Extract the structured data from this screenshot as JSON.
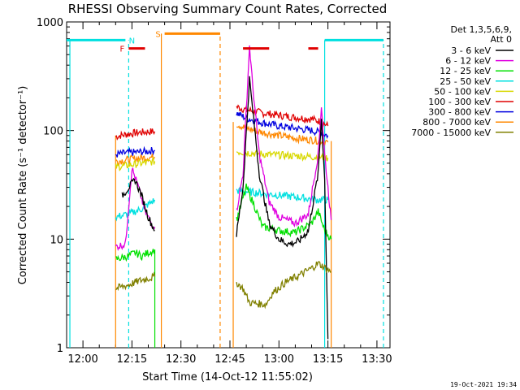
{
  "chart_data": {
    "type": "line",
    "title": "RHESSI Observing Summary Count Rates, Corrected",
    "xlabel": "Start Time (14-Oct-12 11:55:02)",
    "ylabel": "Corrected Count Rate (s⁻¹ detector⁻¹)",
    "y_scale": "log",
    "ylim": [
      1,
      1000
    ],
    "xlim_minutes_label_range": [
      "11:55",
      "13:34"
    ],
    "y_ticks": [
      {
        "value": 1,
        "label": "1"
      },
      {
        "value": 10,
        "label": "10"
      },
      {
        "value": 100,
        "label": "100"
      },
      {
        "value": 1000,
        "label": "1000"
      }
    ],
    "x_ticks": [
      {
        "value": "12:00",
        "label": "12:00"
      },
      {
        "value": "12:15",
        "label": "12:15"
      },
      {
        "value": "12:30",
        "label": "12:30"
      },
      {
        "value": "12:45",
        "label": "12:45"
      },
      {
        "value": "13:00",
        "label": "13:00"
      },
      {
        "value": "13:15",
        "label": "13:15"
      },
      {
        "value": "13:30",
        "label": "13:30"
      }
    ],
    "legend": {
      "placement": "top-right",
      "header1": "Det 1,3,5,6,9,",
      "header2": "Att 0",
      "entries": [
        {
          "label": "3 - 6 keV",
          "color": "#000000"
        },
        {
          "label": "6 - 12 keV",
          "color": "#e000e0"
        },
        {
          "label": "12 - 25 keV",
          "color": "#00e000"
        },
        {
          "label": "25 - 50 keV",
          "color": "#00e0e0"
        },
        {
          "label": "50 - 100 keV",
          "color": "#d8d800"
        },
        {
          "label": "100 - 300 keV",
          "color": "#e00000"
        },
        {
          "label": "300 - 800 keV",
          "color": "#0000e0"
        },
        {
          "label": "800 - 7000 keV",
          "color": "#ff8800"
        },
        {
          "label": "7000 - 15000 keV",
          "color": "#808000"
        }
      ]
    },
    "series": [
      {
        "name": "100 - 300 keV",
        "color": "#e00000",
        "segments": [
          [
            [
              "12:10",
              88
            ],
            [
              "12:13",
              92
            ],
            [
              "12:16",
              95
            ],
            [
              "12:19",
              97
            ],
            [
              "12:22",
              98
            ]
          ],
          [
            [
              "12:47",
              165
            ],
            [
              "12:50",
              155
            ],
            [
              "12:55",
              145
            ],
            [
              "13:00",
              138
            ],
            [
              "13:05",
              132
            ],
            [
              "13:10",
              128
            ],
            [
              "13:13",
              120
            ],
            [
              "13:15",
              110
            ]
          ]
        ]
      },
      {
        "name": "300 - 800 keV",
        "color": "#0000e0",
        "segments": [
          [
            [
              "12:10",
              60
            ],
            [
              "12:13",
              62
            ],
            [
              "12:16",
              63
            ],
            [
              "12:19",
              64
            ],
            [
              "12:22",
              66
            ]
          ],
          [
            [
              "12:47",
              145
            ],
            [
              "12:50",
              130
            ],
            [
              "12:55",
              118
            ],
            [
              "13:00",
              110
            ],
            [
              "13:05",
              105
            ],
            [
              "13:10",
              100
            ],
            [
              "13:13",
              95
            ],
            [
              "13:15",
              90
            ]
          ]
        ]
      },
      {
        "name": "800 - 7000 keV",
        "color": "#ff8800",
        "segments": [
          [
            [
              "12:10",
              52
            ],
            [
              "12:14",
              54
            ],
            [
              "12:18",
              56
            ],
            [
              "12:22",
              57
            ]
          ],
          [
            [
              "12:47",
              115
            ],
            [
              "12:50",
              105
            ],
            [
              "12:55",
              96
            ],
            [
              "13:00",
              90
            ],
            [
              "13:05",
              85
            ],
            [
              "13:10",
              82
            ],
            [
              "13:13",
              80
            ],
            [
              "13:15",
              78
            ]
          ]
        ]
      },
      {
        "name": "50 - 100 keV",
        "color": "#d8d800",
        "segments": [
          [
            [
              "12:10",
              46
            ],
            [
              "12:14",
              48
            ],
            [
              "12:18",
              50
            ],
            [
              "12:22",
              52
            ]
          ],
          [
            [
              "12:47",
              64
            ],
            [
              "12:52",
              62
            ],
            [
              "12:57",
              60
            ],
            [
              "13:02",
              59
            ],
            [
              "13:07",
              58
            ],
            [
              "13:12",
              57
            ],
            [
              "13:15",
              56
            ]
          ]
        ]
      },
      {
        "name": "25 - 50 keV",
        "color": "#00e0e0",
        "segments": [
          [
            [
              "12:10",
              16
            ],
            [
              "12:14",
              17
            ],
            [
              "12:18",
              19
            ],
            [
              "12:22",
              23
            ]
          ],
          [
            [
              "12:47",
              28
            ],
            [
              "12:52",
              27
            ],
            [
              "12:57",
              26
            ],
            [
              "13:02",
              25
            ],
            [
              "13:07",
              24
            ],
            [
              "13:12",
              23
            ],
            [
              "13:15",
              23
            ]
          ]
        ]
      },
      {
        "name": "12 - 25 keV",
        "color": "#00e000",
        "segments": [
          [
            [
              "12:10",
              6.5
            ],
            [
              "12:14",
              7
            ],
            [
              "12:16",
              7.5
            ],
            [
              "12:18",
              7
            ],
            [
              "12:20",
              7.5
            ],
            [
              "12:22",
              8
            ]
          ],
          [
            [
              "12:47",
              15
            ],
            [
              "12:50",
              30
            ],
            [
              "12:52",
              22
            ],
            [
              "12:55",
              13
            ],
            [
              "13:00",
              12
            ],
            [
              "13:05",
              11.5
            ],
            [
              "13:10",
              14
            ],
            [
              "13:12",
              18
            ],
            [
              "13:14",
              12
            ],
            [
              "13:16",
              10
            ]
          ]
        ]
      },
      {
        "name": "6 - 12 keV",
        "color": "#e000e0",
        "segments": [
          [
            [
              "12:10",
              8.5
            ],
            [
              "12:13",
              9
            ],
            [
              "12:15",
              45
            ],
            [
              "12:17",
              30
            ],
            [
              "12:19",
              18
            ],
            [
              "12:21",
              14
            ],
            [
              "12:22",
              13
            ]
          ],
          [
            [
              "12:47",
              18
            ],
            [
              "12:49",
              40
            ],
            [
              "12:51",
              600
            ],
            [
              "12:52",
              250
            ],
            [
              "12:54",
              60
            ],
            [
              "12:57",
              22
            ],
            [
              "13:00",
              16
            ],
            [
              "13:05",
              14
            ],
            [
              "13:09",
              17
            ],
            [
              "13:12",
              60
            ],
            [
              "13:13",
              170
            ],
            [
              "13:14",
              60
            ],
            [
              "13:16",
              15
            ]
          ]
        ]
      },
      {
        "name": "3 - 6 keV",
        "color": "#000000",
        "segments": [
          [
            [
              "12:12",
              25
            ],
            [
              "12:14",
              30
            ],
            [
              "12:16",
              35
            ],
            [
              "12:18",
              25
            ],
            [
              "12:20",
              16
            ],
            [
              "12:22",
              12
            ]
          ],
          [
            [
              "12:47",
              11
            ],
            [
              "12:49",
              30
            ],
            [
              "12:51",
              300
            ],
            [
              "12:52",
              150
            ],
            [
              "12:54",
              40
            ],
            [
              "12:57",
              14
            ],
            [
              "13:00",
              10
            ],
            [
              "13:03",
              9
            ],
            [
              "13:06",
              9.5
            ],
            [
              "13:09",
              12
            ],
            [
              "13:12",
              40
            ],
            [
              "13:13",
              130
            ],
            [
              "13:14",
              35
            ],
            [
              "13:15",
              1.2
            ]
          ]
        ]
      },
      {
        "name": "7000 - 15000 keV",
        "color": "#808000",
        "segments": [
          [
            [
              "12:10",
              3.5
            ],
            [
              "12:14",
              3.8
            ],
            [
              "12:18",
              4.2
            ],
            [
              "12:22",
              4.5
            ]
          ],
          [
            [
              "12:47",
              4
            ],
            [
              "12:49",
              3.5
            ],
            [
              "12:51",
              2.6
            ],
            [
              "12:56",
              2.5
            ],
            [
              "12:58",
              3.2
            ],
            [
              "13:02",
              4
            ],
            [
              "13:06",
              4.6
            ],
            [
              "13:10",
              5.4
            ],
            [
              "13:12",
              6
            ],
            [
              "13:16",
              5
            ]
          ]
        ]
      }
    ],
    "annotations": {
      "flags": [
        {
          "label": "F",
          "color": "#e00000",
          "level": 570,
          "start": "12:14",
          "end": "12:19",
          "label_at": "12:12"
        },
        {
          "label": "",
          "color": "#e00000",
          "level": 570,
          "start": "12:49",
          "end": "12:57"
        },
        {
          "label": "",
          "color": "#e00000",
          "level": 570,
          "start": "13:09",
          "end": "13:12"
        },
        {
          "label": "N",
          "color": "#00e0e0",
          "level": 680,
          "start": "11:55",
          "end": "12:13",
          "label_at": "12:15"
        },
        {
          "label": "",
          "color": "#00e0e0",
          "level": 680,
          "start": "13:14",
          "end": "13:32"
        },
        {
          "label": "S",
          "color": "#ff8800",
          "level": 780,
          "start": "12:25",
          "end": "12:42",
          "label_at": "12:23"
        }
      ],
      "vlines": [
        {
          "time": "12:10",
          "color": "#ff8800",
          "style": "solid",
          "from": 1,
          "to": 90
        },
        {
          "time": "12:14",
          "color": "#00e0e0",
          "style": "dashed",
          "from": 1,
          "to": 680
        },
        {
          "time": "12:22",
          "color": "#00e000",
          "style": "solid",
          "from": 1,
          "to": 8
        },
        {
          "time": "12:24",
          "color": "#ff8800",
          "style": "solid",
          "from": 1,
          "to": 780
        },
        {
          "time": "12:42",
          "color": "#ff8800",
          "style": "dashed",
          "from": 1,
          "to": 780
        },
        {
          "time": "12:46",
          "color": "#ff8800",
          "style": "solid",
          "from": 1,
          "to": 120
        },
        {
          "time": "13:14",
          "color": "#00e0e0",
          "style": "solid",
          "from": 1,
          "to": 680
        },
        {
          "time": "13:16",
          "color": "#ff8800",
          "style": "solid",
          "from": 1,
          "to": 80
        },
        {
          "time": "11:56",
          "color": "#00e0e0",
          "style": "solid",
          "from": 1,
          "to": 680
        },
        {
          "time": "13:32",
          "color": "#00e0e0",
          "style": "dashed",
          "from": 1,
          "to": 680
        }
      ]
    },
    "timestamp": "19-Oct-2021 19:34"
  }
}
